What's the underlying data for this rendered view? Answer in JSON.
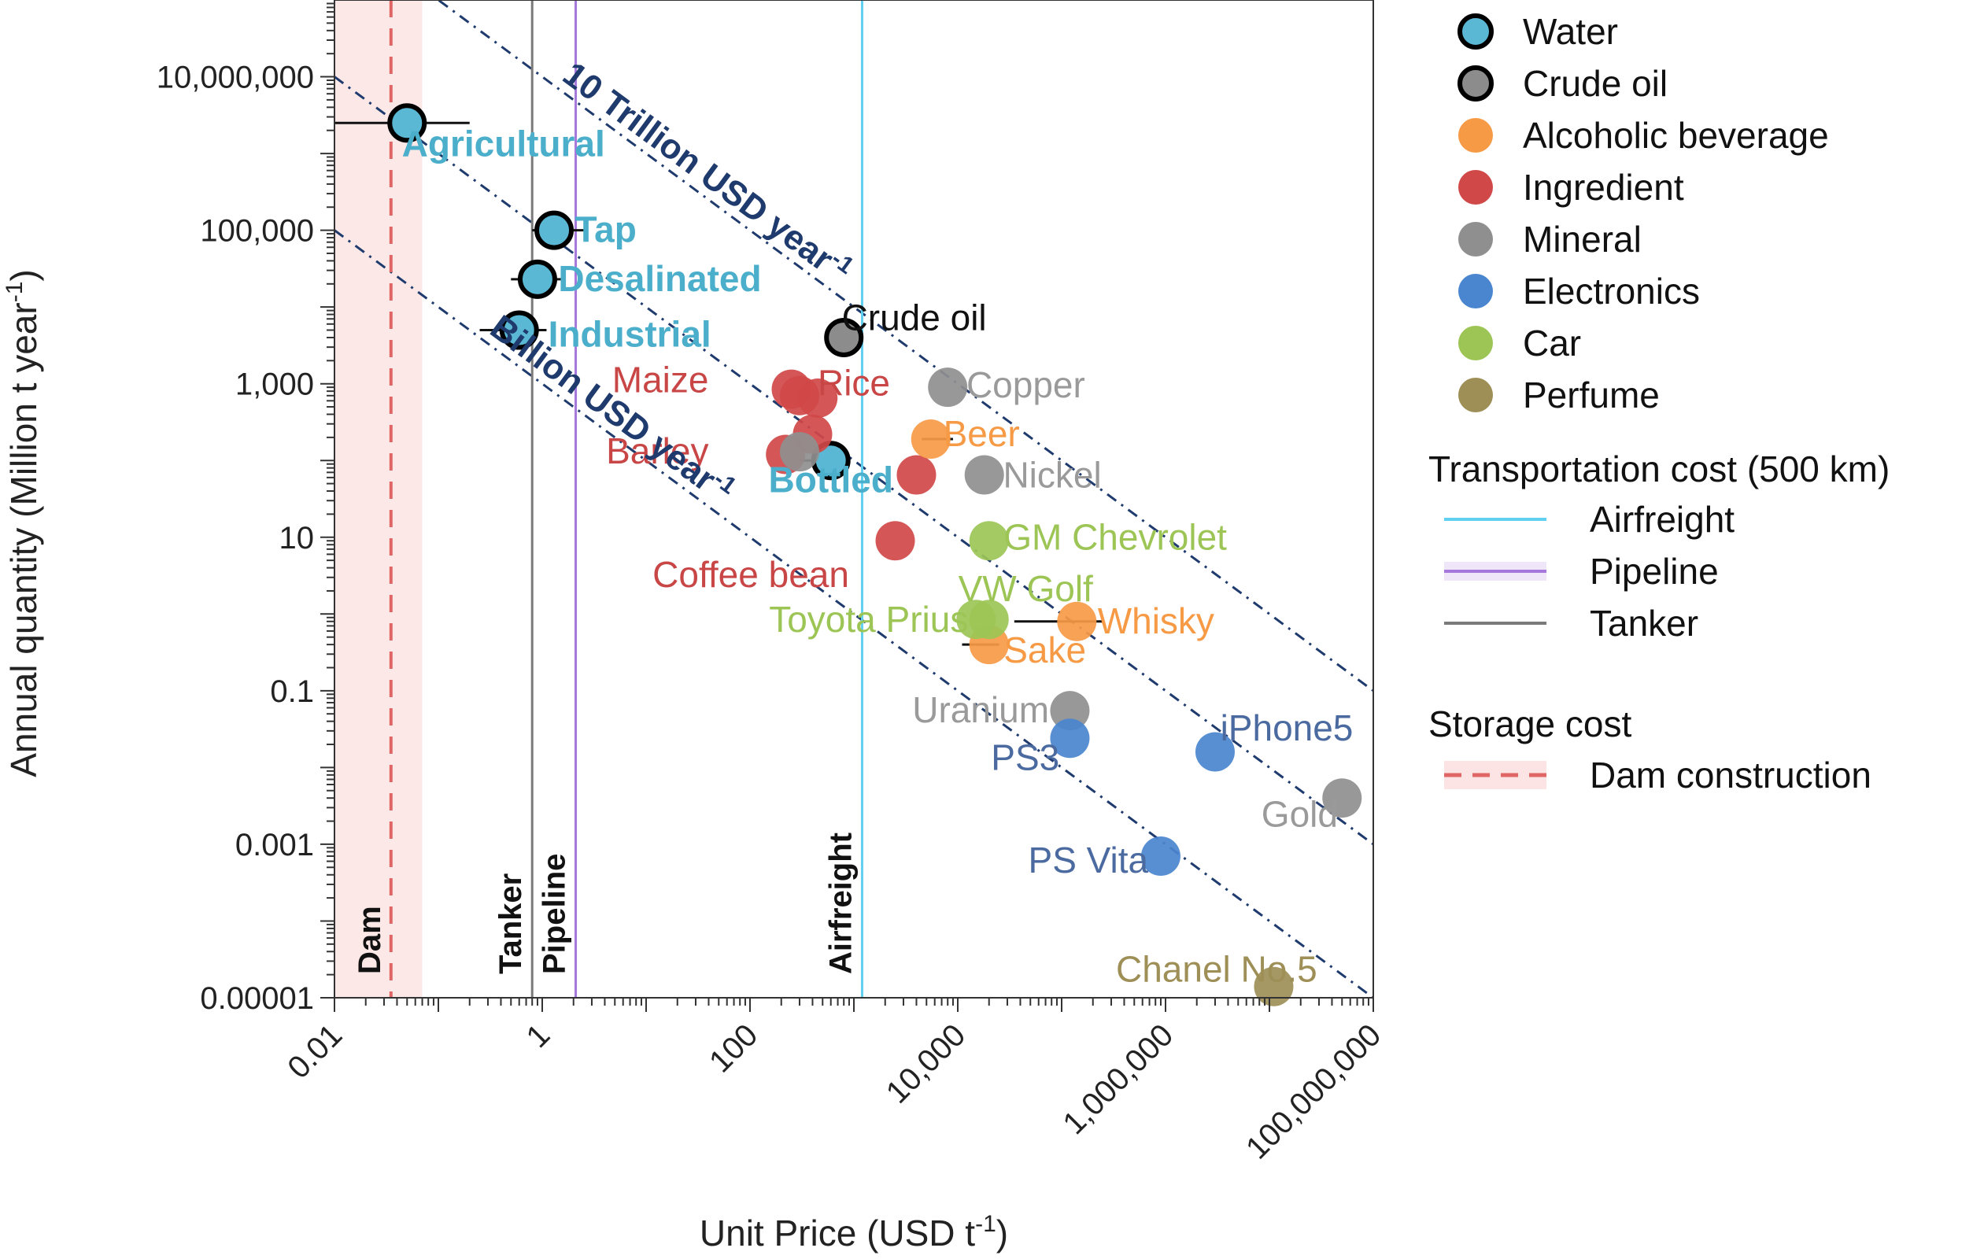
{
  "chart_data": {
    "type": "scatter",
    "xlabel": "Unit Price (USD t",
    "xlabel_sup": "-1",
    "xlabel_end": ")",
    "ylabel": "Annual quantity (Million t year",
    "ylabel_sup": "-1",
    "ylabel_end": ")",
    "x_scale": "log",
    "y_scale": "log",
    "xlim": [
      0.01,
      100000000
    ],
    "ylim": [
      1e-05,
      100000000
    ],
    "x_tick_labels": [
      {
        "value": 0.01,
        "label": "0.01"
      },
      {
        "value": 1,
        "label": "1"
      },
      {
        "value": 100,
        "label": "100"
      },
      {
        "value": 10000,
        "label": "10,000"
      },
      {
        "value": 1000000,
        "label": "1,000,000"
      },
      {
        "value": 100000000,
        "label": "100,000,000"
      }
    ],
    "y_tick_labels": [
      {
        "value": 10000000,
        "label": "10,000,000"
      },
      {
        "value": 100000,
        "label": "100,000"
      },
      {
        "value": 1000,
        "label": "1,000"
      },
      {
        "value": 10,
        "label": "10"
      },
      {
        "value": 0.1,
        "label": "0.1"
      },
      {
        "value": 0.001,
        "label": "0.001"
      },
      {
        "value": 1e-05,
        "label": "0.00001"
      }
    ],
    "categories": [
      {
        "key": "water",
        "name": "Water",
        "color": "#5BB8D4",
        "outlined": true
      },
      {
        "key": "crude",
        "name": "Crude oil",
        "color": "#8C8C8C",
        "outlined": true
      },
      {
        "key": "alcohol",
        "name": "Alcoholic beverage",
        "color": "#F79A46",
        "outlined": false
      },
      {
        "key": "ingredient",
        "name": "Ingredient",
        "color": "#D04848",
        "outlined": false
      },
      {
        "key": "mineral",
        "name": "Mineral",
        "color": "#8F8F8F",
        "outlined": false
      },
      {
        "key": "electronics",
        "name": "Electronics",
        "color": "#4A86CF",
        "outlined": false
      },
      {
        "key": "car",
        "name": "Car",
        "color": "#9CC556",
        "outlined": false
      },
      {
        "key": "perfume",
        "name": "Perfume",
        "color": "#9E8F57",
        "outlined": false
      }
    ],
    "points": [
      {
        "name": "Agricultural",
        "category": "water",
        "x": 0.05,
        "y": 2500000,
        "xerr": [
          0.01,
          0.2
        ],
        "label_color": "#4BAFCB",
        "bold": true,
        "label_anchor": "start",
        "label_dx": -0.05,
        "label_dy": -0.28
      },
      {
        "name": "Tap",
        "category": "water",
        "x": 1.3,
        "y": 100000,
        "xerr": [
          0.8,
          2.5
        ],
        "label_color": "#4BAFCB",
        "bold": true,
        "label_anchor": "start",
        "label_dx": 0.2,
        "label_dy": 0.0
      },
      {
        "name": "Desalinated",
        "category": "water",
        "x": 0.9,
        "y": 23000,
        "xerr": [
          0.5,
          1.6
        ],
        "label_color": "#4BAFCB",
        "bold": true,
        "label_anchor": "start",
        "label_dx": 0.2,
        "label_dy": 0.0
      },
      {
        "name": "Industrial",
        "category": "water",
        "x": 0.6,
        "y": 5000,
        "xerr": [
          0.25,
          1.1
        ],
        "label_color": "#4BAFCB",
        "bold": true,
        "label_anchor": "start",
        "label_dx": 0.28,
        "label_dy": -0.06
      },
      {
        "name": "Bottled",
        "category": "water",
        "x": 600,
        "y": 100,
        "xerr": [
          300,
          900
        ],
        "label_color": "#4BAFCB",
        "bold": true,
        "label_anchor": "middle",
        "label_dx": 0.0,
        "label_dy": -0.26
      },
      {
        "name": "Crude oil",
        "category": "crude",
        "x": 800,
        "y": 4000,
        "xerr": null,
        "label_color": "#111111",
        "bold": false,
        "label_anchor": "start",
        "label_dx": -0.02,
        "label_dy": 0.25
      },
      {
        "name": "",
        "category": "ingredient",
        "x": 250,
        "y": 850,
        "xerr": null
      },
      {
        "name": "",
        "category": "ingredient",
        "x": 300,
        "y": 700,
        "xerr": null
      },
      {
        "name": "",
        "category": "ingredient",
        "x": 450,
        "y": 650,
        "xerr": null
      },
      {
        "name": "",
        "category": "ingredient",
        "x": 400,
        "y": 220,
        "xerr": null
      },
      {
        "name": "",
        "category": "ingredient",
        "x": 220,
        "y": 120,
        "xerr": null
      },
      {
        "name": "",
        "category": "ingredient",
        "x": 4000,
        "y": 65,
        "xerr": null
      },
      {
        "name": "",
        "category": "ingredient",
        "x": 2500,
        "y": 9,
        "xerr": null
      },
      {
        "name": "",
        "category": "mineral",
        "x": 300,
        "y": 130,
        "xerr": null
      },
      {
        "name": "Copper",
        "category": "mineral",
        "x": 8000,
        "y": 900,
        "xerr": null,
        "label_color": "#9A9A9A",
        "bold": false,
        "label_anchor": "start",
        "label_dx": 0.18,
        "label_dy": 0.02
      },
      {
        "name": "Nickel",
        "category": "mineral",
        "x": 18000,
        "y": 65,
        "xerr": null,
        "label_color": "#9A9A9A",
        "bold": false,
        "label_anchor": "start",
        "label_dx": 0.18,
        "label_dy": -0.01
      },
      {
        "name": "Uranium",
        "category": "mineral",
        "x": 120000,
        "y": 0.055,
        "xerr": null,
        "label_color": "#9A9A9A",
        "bold": false,
        "label_anchor": "end",
        "label_dx": -0.2,
        "label_dy": 0.0
      },
      {
        "name": "Gold",
        "category": "mineral",
        "x": 50000000,
        "y": 0.004,
        "xerr": null,
        "label_color": "#9A9A9A",
        "bold": false,
        "label_anchor": "end",
        "label_dx": -0.04,
        "label_dy": -0.22
      },
      {
        "name": "Beer",
        "category": "alcohol",
        "x": 5500,
        "y": 190,
        "xerr": [
          4500,
          9000
        ],
        "label_color": "#F79A46",
        "bold": false,
        "label_anchor": "start",
        "label_dx": 0.12,
        "label_dy": 0.06
      },
      {
        "name": "Whisky",
        "category": "alcohol",
        "x": 140000,
        "y": 0.8,
        "xerr": [
          35000,
          250000
        ],
        "label_color": "#F79A46",
        "bold": false,
        "label_anchor": "start",
        "label_dx": 0.2,
        "label_dy": 0.0
      },
      {
        "name": "Sake",
        "category": "alcohol",
        "x": 20000,
        "y": 0.4,
        "xerr": [
          11000,
          25000
        ],
        "label_color": "#F79A46",
        "bold": false,
        "label_anchor": "start",
        "label_dx": 0.14,
        "label_dy": -0.08
      },
      {
        "name": "GM Chevrolet",
        "category": "car",
        "x": 20000,
        "y": 9,
        "xerr": null,
        "label_color": "#9CC556",
        "bold": false,
        "label_anchor": "start",
        "label_dx": 0.14,
        "label_dy": 0.04
      },
      {
        "name": "",
        "category": "car",
        "x": 15000,
        "y": 0.85,
        "xerr": null
      },
      {
        "name": "Toyota Prius",
        "category": "car",
        "x": 20000,
        "y": 0.85,
        "xerr": null,
        "label_color": "#9CC556",
        "bold": false,
        "label_anchor": "end",
        "label_dx": -0.2,
        "label_dy": -0.01
      },
      {
        "name": "PS3",
        "category": "electronics",
        "x": 120000,
        "y": 0.024,
        "xerr": null,
        "label_color": "#4A6AA0",
        "bold": false,
        "label_anchor": "end",
        "label_dx": -0.1,
        "label_dy": -0.26
      },
      {
        "name": "iPhone5",
        "category": "electronics",
        "x": 3000000,
        "y": 0.016,
        "xerr": null,
        "label_color": "#4A6AA0",
        "bold": false,
        "label_anchor": "start",
        "label_dx": 0.05,
        "label_dy": 0.3
      },
      {
        "name": "PS Vita",
        "category": "electronics",
        "x": 900000,
        "y": 0.0007,
        "xerr": null,
        "label_color": "#4A6AA0",
        "bold": false,
        "label_anchor": "end",
        "label_dx": -0.12,
        "label_dy": -0.06
      },
      {
        "name": "Chanel No.5",
        "category": "perfume",
        "x": 11000000,
        "y": 1.4e-05,
        "xerr": null,
        "label_color": "#9E8F57",
        "bold": false,
        "label_anchor": "middle",
        "label_dx": -0.55,
        "label_dy": 0.22
      }
    ],
    "free_labels": [
      {
        "text": "Maize",
        "x": 40,
        "y": 1100,
        "color": "#C94646",
        "anchor": "end"
      },
      {
        "text": "Rice",
        "x": 1000,
        "y": 1000,
        "color": "#C94646",
        "anchor": "middle"
      },
      {
        "text": "Barley",
        "x": 40,
        "y": 130,
        "color": "#C94646",
        "anchor": "end"
      },
      {
        "text": "Coffee bean",
        "x": 900,
        "y": 3.2,
        "color": "#C94646",
        "anchor": "end"
      },
      {
        "text": "VW Golf",
        "x": 45000,
        "y": 2.1,
        "color": "#9CC556",
        "anchor": "middle"
      }
    ],
    "guide_lines": [
      {
        "label": "10 Trillion USD year",
        "label_sup": "-1",
        "total_usd": 10000000000000,
        "color": "#1F3B6E"
      },
      {
        "label": "",
        "label_sup": "",
        "total_usd": 100000000000,
        "color": "#1F3B6E"
      },
      {
        "label": "Billion USD year",
        "label_sup": "-1",
        "total_usd": 1000000000,
        "color": "#1F3B6E"
      }
    ],
    "vertical_lines": [
      {
        "name": "Dam",
        "x": 0.035,
        "color": "#E06666",
        "dashed": true,
        "band": [
          0.01,
          0.07
        ]
      },
      {
        "name": "Tanker",
        "x": 0.8,
        "color": "#7A7A7A",
        "dashed": false
      },
      {
        "name": "Pipeline",
        "x": 2.1,
        "color": "#A678DC",
        "dashed": false
      },
      {
        "name": "Airfreight",
        "x": 1200,
        "color": "#5FD0F0",
        "dashed": false
      }
    ]
  },
  "legend": {
    "categories_title": "",
    "transport_title": "Transportation cost (500 km)",
    "transport_items": [
      {
        "name": "Airfreight",
        "color": "#5FD0F0"
      },
      {
        "name": "Pipeline",
        "color": "#A678DC"
      },
      {
        "name": "Tanker",
        "color": "#7A7A7A"
      }
    ],
    "storage_title": "Storage cost",
    "storage_items": [
      {
        "name": "Dam construction",
        "color": "#E06666"
      }
    ]
  }
}
